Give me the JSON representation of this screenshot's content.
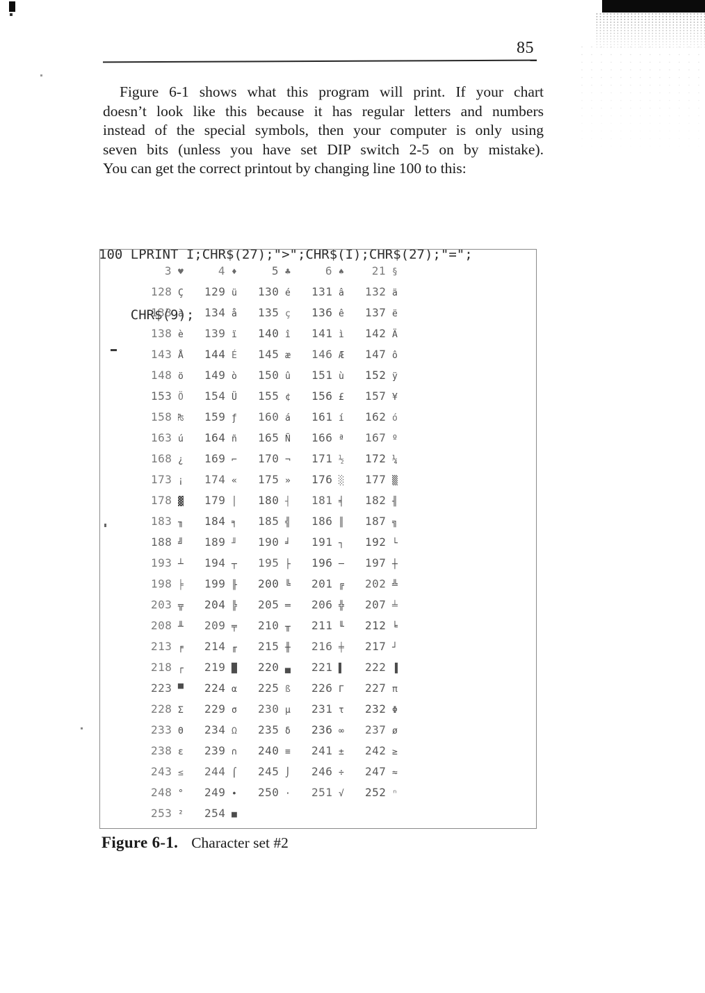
{
  "page": {
    "number": "85"
  },
  "paragraph": {
    "lines": [
      "Figure 6-1 shows what this program will print. If your chart",
      "doesn’t look like this because it has regular letters and numbers",
      "instead of the special symbols, then your computer is only using",
      "seven bits (unless you have set DIP switch 2-5 on by mistake).",
      "You can get the correct printout by changing line 100 to this:"
    ]
  },
  "code": {
    "line1": "100 LPRINT I;CHR$(27);\">\";CHR$(I);CHR$(27);\"=\";",
    "line2": "CHR$(9);"
  },
  "figure": {
    "caption_label": "Figure 6-1.",
    "caption_text": "Character set #2"
  },
  "chart_data": {
    "type": "table",
    "title": "Character set #2",
    "columns_per_row": 5,
    "cell_format": "code number followed by printed glyph",
    "entries": [
      [
        3,
        "♥"
      ],
      [
        4,
        "♦"
      ],
      [
        5,
        "♣"
      ],
      [
        6,
        "♠"
      ],
      [
        21,
        "§"
      ],
      [
        128,
        "Ç"
      ],
      [
        129,
        "ü"
      ],
      [
        130,
        "é"
      ],
      [
        131,
        "â"
      ],
      [
        132,
        "ä"
      ],
      [
        133,
        "à"
      ],
      [
        134,
        "å"
      ],
      [
        135,
        "ç"
      ],
      [
        136,
        "ê"
      ],
      [
        137,
        "ë"
      ],
      [
        138,
        "è"
      ],
      [
        139,
        "ï"
      ],
      [
        140,
        "î"
      ],
      [
        141,
        "ì"
      ],
      [
        142,
        "Ä"
      ],
      [
        143,
        "Å"
      ],
      [
        144,
        "É"
      ],
      [
        145,
        "æ"
      ],
      [
        146,
        "Æ"
      ],
      [
        147,
        "ô"
      ],
      [
        148,
        "ö"
      ],
      [
        149,
        "ò"
      ],
      [
        150,
        "û"
      ],
      [
        151,
        "ù"
      ],
      [
        152,
        "ÿ"
      ],
      [
        153,
        "Ö"
      ],
      [
        154,
        "Ü"
      ],
      [
        155,
        "¢"
      ],
      [
        156,
        "£"
      ],
      [
        157,
        "¥"
      ],
      [
        158,
        "₧"
      ],
      [
        159,
        "ƒ"
      ],
      [
        160,
        "á"
      ],
      [
        161,
        "í"
      ],
      [
        162,
        "ó"
      ],
      [
        163,
        "ú"
      ],
      [
        164,
        "ñ"
      ],
      [
        165,
        "Ñ"
      ],
      [
        166,
        "ª"
      ],
      [
        167,
        "º"
      ],
      [
        168,
        "¿"
      ],
      [
        169,
        "⌐"
      ],
      [
        170,
        "¬"
      ],
      [
        171,
        "½"
      ],
      [
        172,
        "¼"
      ],
      [
        173,
        "¡"
      ],
      [
        174,
        "«"
      ],
      [
        175,
        "»"
      ],
      [
        176,
        "░"
      ],
      [
        177,
        "▒"
      ],
      [
        178,
        "▓"
      ],
      [
        179,
        "│"
      ],
      [
        180,
        "┤"
      ],
      [
        181,
        "╡"
      ],
      [
        182,
        "╢"
      ],
      [
        183,
        "╖"
      ],
      [
        184,
        "╕"
      ],
      [
        185,
        "╣"
      ],
      [
        186,
        "║"
      ],
      [
        187,
        "╗"
      ],
      [
        188,
        "╝"
      ],
      [
        189,
        "╜"
      ],
      [
        190,
        "╛"
      ],
      [
        191,
        "┐"
      ],
      [
        192,
        "└"
      ],
      [
        193,
        "┴"
      ],
      [
        194,
        "┬"
      ],
      [
        195,
        "├"
      ],
      [
        196,
        "─"
      ],
      [
        197,
        "┼"
      ],
      [
        198,
        "╞"
      ],
      [
        199,
        "╟"
      ],
      [
        200,
        "╚"
      ],
      [
        201,
        "╔"
      ],
      [
        202,
        "╩"
      ],
      [
        203,
        "╦"
      ],
      [
        204,
        "╠"
      ],
      [
        205,
        "═"
      ],
      [
        206,
        "╬"
      ],
      [
        207,
        "╧"
      ],
      [
        208,
        "╨"
      ],
      [
        209,
        "╤"
      ],
      [
        210,
        "╥"
      ],
      [
        211,
        "╙"
      ],
      [
        212,
        "╘"
      ],
      [
        213,
        "╒"
      ],
      [
        214,
        "╓"
      ],
      [
        215,
        "╫"
      ],
      [
        216,
        "╪"
      ],
      [
        217,
        "┘"
      ],
      [
        218,
        "┌"
      ],
      [
        219,
        "█"
      ],
      [
        220,
        "▄"
      ],
      [
        221,
        "▌"
      ],
      [
        222,
        "▐"
      ],
      [
        223,
        "▀"
      ],
      [
        224,
        "α"
      ],
      [
        225,
        "ß"
      ],
      [
        226,
        "Γ"
      ],
      [
        227,
        "π"
      ],
      [
        228,
        "Σ"
      ],
      [
        229,
        "σ"
      ],
      [
        230,
        "µ"
      ],
      [
        231,
        "τ"
      ],
      [
        232,
        "Φ"
      ],
      [
        233,
        "Θ"
      ],
      [
        234,
        "Ω"
      ],
      [
        235,
        "δ"
      ],
      [
        236,
        "∞"
      ],
      [
        237,
        "ø"
      ],
      [
        238,
        "ε"
      ],
      [
        239,
        "∩"
      ],
      [
        240,
        "≡"
      ],
      [
        241,
        "±"
      ],
      [
        242,
        "≥"
      ],
      [
        243,
        "≤"
      ],
      [
        244,
        "⌠"
      ],
      [
        245,
        "⌡"
      ],
      [
        246,
        "÷"
      ],
      [
        247,
        "≈"
      ],
      [
        248,
        "°"
      ],
      [
        249,
        "∙"
      ],
      [
        250,
        "·"
      ],
      [
        251,
        "√"
      ],
      [
        252,
        "ⁿ"
      ],
      [
        253,
        "²"
      ],
      [
        254,
        "■"
      ]
    ]
  }
}
